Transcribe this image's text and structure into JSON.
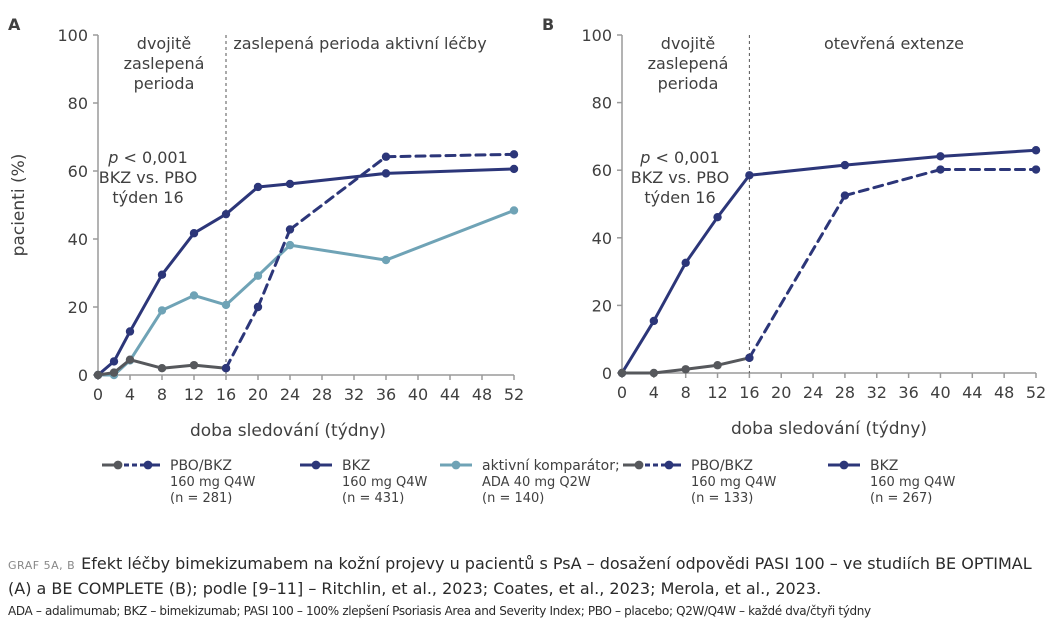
{
  "colors": {
    "navy": "#2c3679",
    "teal": "#6fa3b6",
    "gray": "#56585c",
    "axis": "#9a9a9a"
  },
  "chart_data": [
    {
      "type": "line",
      "panel_label": "A",
      "ylabel": "pacienti (%)",
      "xlabel": "doba sledování (týdny)",
      "x_ticks": [
        0,
        4,
        8,
        12,
        16,
        20,
        24,
        28,
        32,
        36,
        40,
        44,
        48,
        52
      ],
      "y_ticks": [
        0,
        20,
        40,
        60,
        80,
        100
      ],
      "xlim": [
        0,
        52
      ],
      "ylim": [
        0,
        100
      ],
      "divider_x": 16,
      "period_labels": [
        {
          "text": [
            "dvojitě",
            "zaslepená",
            "perioda"
          ]
        },
        {
          "text": [
            "zaslepená perioda aktivní léčby"
          ]
        }
      ],
      "annotation": [
        "p < 0,001",
        "BKZ vs. PBO",
        "týden 16"
      ],
      "series": [
        {
          "name": "BKZ 160 mg Q4W",
          "color": "navy",
          "style": "solid",
          "x": [
            0,
            2,
            4,
            8,
            12,
            16,
            20,
            24,
            36,
            52
          ],
          "y": [
            0,
            4,
            12.8,
            29.5,
            41.7,
            47.3,
            55.3,
            56.2,
            59.3,
            60.6
          ]
        },
        {
          "name": "aktivní komparátor ADA",
          "color": "teal",
          "style": "solid",
          "x": [
            0,
            2,
            4,
            8,
            12,
            16,
            20,
            24,
            36,
            52
          ],
          "y": [
            0,
            0,
            4.3,
            19,
            23.4,
            20.6,
            29.2,
            38.2,
            33.8,
            48.4
          ]
        },
        {
          "name": "PBO",
          "color": "gray",
          "style": "solid",
          "x": [
            0,
            2,
            4,
            8,
            12,
            16
          ],
          "y": [
            0,
            0.7,
            4.5,
            2,
            2.9,
            2
          ]
        },
        {
          "name": "PBO/BKZ",
          "color": "navy",
          "style": "dashed",
          "x": [
            16,
            20,
            24,
            36,
            52
          ],
          "y": [
            2,
            20,
            42.8,
            64.2,
            64.9
          ]
        }
      ]
    },
    {
      "type": "line",
      "panel_label": "B",
      "xlabel": "doba sledování (týdny)",
      "x_ticks": [
        0,
        4,
        8,
        12,
        16,
        20,
        24,
        28,
        32,
        36,
        40,
        44,
        48,
        52
      ],
      "y_ticks": [
        0,
        20,
        40,
        60,
        80,
        100
      ],
      "xlim": [
        0,
        52
      ],
      "ylim": [
        0,
        100
      ],
      "divider_x": 16,
      "period_labels": [
        {
          "text": [
            "dvojitě",
            "zaslepená",
            "perioda"
          ]
        },
        {
          "text": [
            "otevřená extenze"
          ]
        }
      ],
      "annotation": [
        "p < 0,001",
        "BKZ vs. PBO",
        "týden 16"
      ],
      "series": [
        {
          "name": "BKZ 160 mg Q4W",
          "color": "navy",
          "style": "solid",
          "x": [
            0,
            4,
            8,
            12,
            16,
            28,
            40,
            52
          ],
          "y": [
            0,
            15.4,
            32.6,
            46.1,
            58.5,
            61.5,
            64.1,
            65.9
          ]
        },
        {
          "name": "PBO",
          "color": "gray",
          "style": "solid",
          "x": [
            0,
            4,
            8,
            12,
            16
          ],
          "y": [
            0,
            0,
            1.1,
            2.3,
            4.5
          ]
        },
        {
          "name": "PBO/BKZ",
          "color": "navy",
          "style": "dashed",
          "x": [
            16,
            28,
            40,
            52
          ],
          "y": [
            4.5,
            52.5,
            60.2,
            60.2
          ]
        }
      ]
    }
  ],
  "legend": [
    {
      "style": "pbo-bkz",
      "lines": [
        "PBO/BKZ",
        "160 mg Q4W",
        "(n = 281)"
      ]
    },
    {
      "style": "bkz",
      "lines": [
        "BKZ",
        "160 mg Q4W",
        "(n = 431)"
      ]
    },
    {
      "style": "ada",
      "lines": [
        "aktivní komparátor;",
        "ADA 40 mg Q2W",
        "(n = 140)"
      ]
    },
    {
      "style": "pbo-bkz",
      "lines": [
        "PBO/BKZ",
        "160 mg Q4W",
        "(n = 133)"
      ]
    },
    {
      "style": "bkz",
      "lines": [
        "BKZ",
        "160 mg Q4W",
        "(n = 267)"
      ]
    }
  ],
  "caption": {
    "label": "GRAF 5A, B",
    "title": "Efekt léčby bimekizumabem na kožní projevy u pacientů s PsA – dosažení odpovědi PASI 100 – ve studiích BE OPTIMAL (A) a BE COMPLETE (B); podle [9–11] – Ritchlin, et al., 2023; Coates, et al., 2023; Merola, et al., 2023.",
    "abbreviations": "ADA – adalimumab; BKZ – bimekizumab; PASI 100 – 100% zlepšení Psoriasis Area and Severity Index; PBO – placebo; Q2W/Q4W – každé dva/čtyři týdny"
  }
}
